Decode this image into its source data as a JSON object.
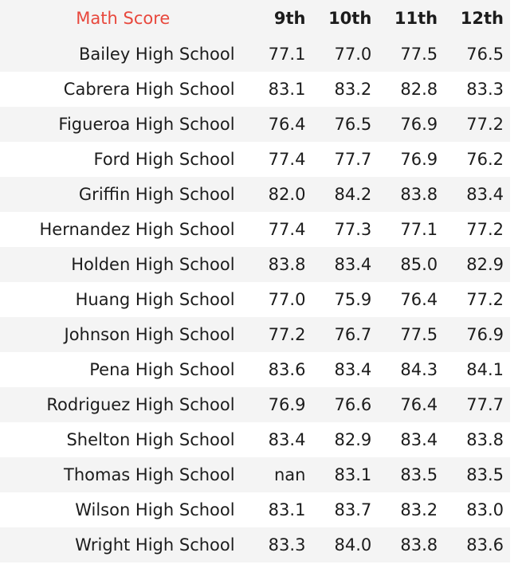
{
  "table": {
    "index_label": "Math Score",
    "columns": [
      "9th",
      "10th",
      "11th",
      "12th"
    ],
    "rows": [
      {
        "school": "Bailey High School",
        "values": [
          "77.1",
          "77.0",
          "77.5",
          "76.5"
        ]
      },
      {
        "school": "Cabrera High School",
        "values": [
          "83.1",
          "83.2",
          "82.8",
          "83.3"
        ]
      },
      {
        "school": "Figueroa High School",
        "values": [
          "76.4",
          "76.5",
          "76.9",
          "77.2"
        ]
      },
      {
        "school": "Ford High School",
        "values": [
          "77.4",
          "77.7",
          "76.9",
          "76.2"
        ]
      },
      {
        "school": "Griffin High School",
        "values": [
          "82.0",
          "84.2",
          "83.8",
          "83.4"
        ]
      },
      {
        "school": "Hernandez High School",
        "values": [
          "77.4",
          "77.3",
          "77.1",
          "77.2"
        ]
      },
      {
        "school": "Holden High School",
        "values": [
          "83.8",
          "83.4",
          "85.0",
          "82.9"
        ]
      },
      {
        "school": "Huang High School",
        "values": [
          "77.0",
          "75.9",
          "76.4",
          "77.2"
        ]
      },
      {
        "school": "Johnson High School",
        "values": [
          "77.2",
          "76.7",
          "77.5",
          "76.9"
        ]
      },
      {
        "school": "Pena High School",
        "values": [
          "83.6",
          "83.4",
          "84.3",
          "84.1"
        ]
      },
      {
        "school": "Rodriguez High School",
        "values": [
          "76.9",
          "76.6",
          "76.4",
          "77.7"
        ]
      },
      {
        "school": "Shelton High School",
        "values": [
          "83.4",
          "82.9",
          "83.4",
          "83.8"
        ]
      },
      {
        "school": "Thomas High School",
        "values": [
          "nan",
          "83.1",
          "83.5",
          "83.5"
        ]
      },
      {
        "school": "Wilson High School",
        "values": [
          "83.1",
          "83.7",
          "83.2",
          "83.0"
        ]
      },
      {
        "school": "Wright High School",
        "values": [
          "83.3",
          "84.0",
          "83.8",
          "83.6"
        ]
      }
    ]
  },
  "colors": {
    "index_label": "#e8483d",
    "stripe": "#f4f4f4",
    "text": "#1c1c1c"
  }
}
